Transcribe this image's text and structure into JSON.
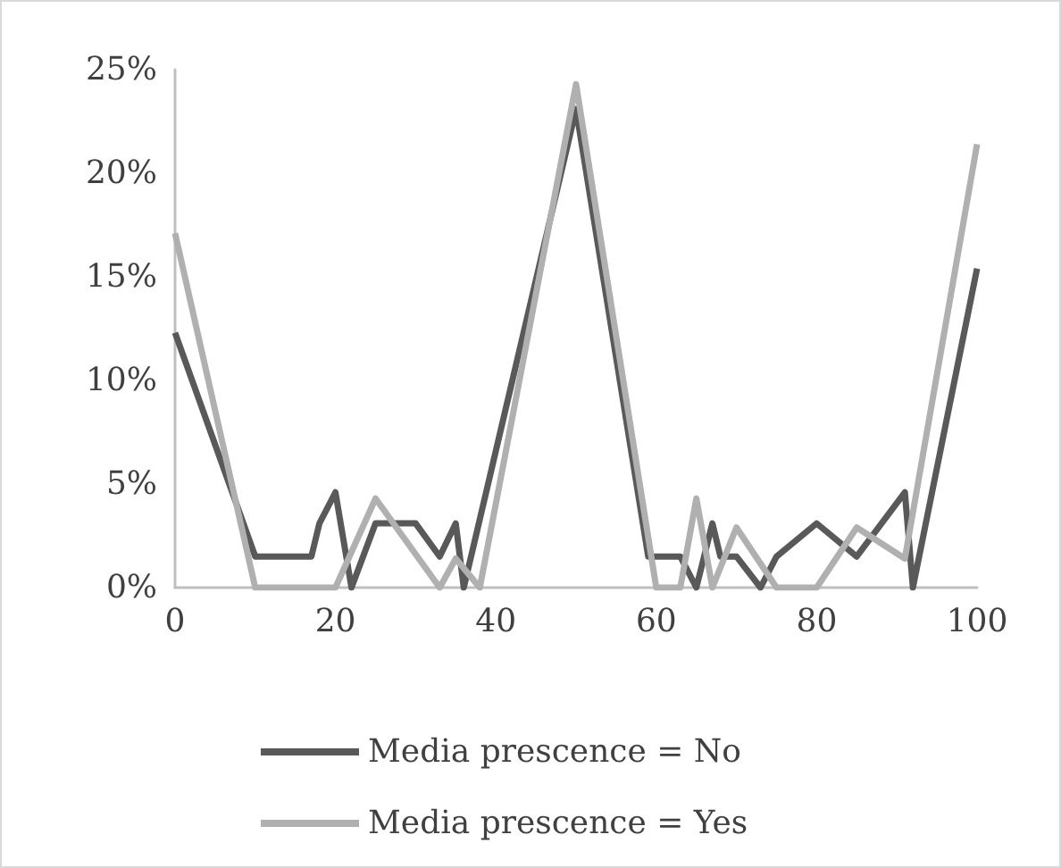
{
  "chart_data": {
    "type": "line",
    "series": [
      {
        "name": "Media prescence = No",
        "color": "#595959",
        "x": [
          0,
          10,
          17,
          18,
          20,
          22,
          25,
          30,
          33,
          35,
          36,
          50,
          59,
          63,
          65,
          67,
          68,
          70,
          73,
          75,
          80,
          85,
          91,
          92,
          100
        ],
        "values": [
          12.3,
          1.5,
          1.5,
          3.1,
          4.6,
          0,
          3.1,
          3.1,
          1.5,
          3.1,
          0,
          23.1,
          1.5,
          1.5,
          0,
          3.1,
          1.5,
          1.5,
          0,
          1.5,
          3.1,
          1.5,
          4.6,
          0,
          15.4
        ]
      },
      {
        "name": "Media prescence = Yes",
        "color": "#b0b0b0",
        "x": [
          0,
          10,
          20,
          25,
          33,
          35,
          38,
          50,
          60,
          63,
          65,
          67,
          70,
          75,
          80,
          85,
          91,
          100
        ],
        "values": [
          17.1,
          0,
          0,
          4.3,
          0,
          1.4,
          0,
          24.3,
          0,
          0,
          4.3,
          0,
          2.9,
          0,
          0,
          2.9,
          1.4,
          21.4
        ]
      }
    ],
    "xlim": [
      0,
      100
    ],
    "xticks": [
      0,
      20,
      40,
      60,
      80,
      100
    ],
    "ylim": [
      0,
      25
    ],
    "yticks": [
      {
        "value": 0,
        "label": "0%"
      },
      {
        "value": 5,
        "label": "5%"
      },
      {
        "value": 10,
        "label": "10%"
      },
      {
        "value": 15,
        "label": "15%"
      },
      {
        "value": 20,
        "label": "20%"
      },
      {
        "value": 25,
        "label": "25%"
      }
    ],
    "grid": false,
    "legend": "bottom",
    "marker": "none",
    "line_style": "solid"
  }
}
